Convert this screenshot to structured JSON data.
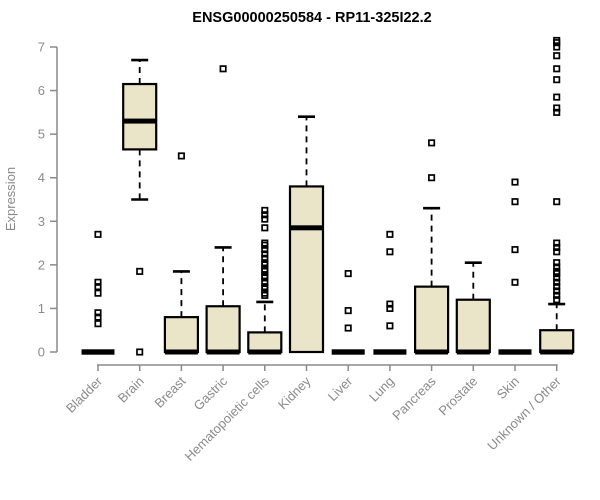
{
  "chart_data": {
    "type": "boxplot",
    "title": "ENSG00000250584 - RP11-325I22.2",
    "xlabel": "",
    "ylabel": "Expression",
    "ylim": [
      0,
      7
    ],
    "yticks": [
      0,
      1,
      2,
      3,
      4,
      5,
      6,
      7
    ],
    "grid": false,
    "legend": "none",
    "categories": [
      "Bladder",
      "Brain",
      "Breast",
      "Gastric",
      "Hematopoietic cells",
      "Kidney",
      "Liver",
      "Lung",
      "Pancreas",
      "Prostate",
      "Skin",
      "Unknown / Other"
    ],
    "series": [
      {
        "name": "Bladder",
        "min": 0,
        "q1": 0,
        "median": 0,
        "q3": 0,
        "max": 0,
        "outliers": [
          2.7,
          1.6,
          1.5,
          1.35,
          0.9,
          0.8,
          0.65
        ]
      },
      {
        "name": "Brain",
        "min": 3.5,
        "q1": 4.65,
        "median": 5.3,
        "q3": 6.15,
        "max": 6.7,
        "outliers": [
          1.85,
          0.0
        ]
      },
      {
        "name": "Breast",
        "min": 0,
        "q1": 0,
        "median": 0,
        "q3": 0.8,
        "max": 1.85,
        "outliers": [
          4.5
        ]
      },
      {
        "name": "Gastric",
        "min": 0,
        "q1": 0,
        "median": 0,
        "q3": 1.05,
        "max": 2.4,
        "outliers": [
          6.5
        ]
      },
      {
        "name": "Hematopoietic cells",
        "min": 0,
        "q1": 0,
        "median": 0,
        "q3": 0.45,
        "max": 1.15,
        "outliers": [
          3.25,
          3.15,
          3.05,
          2.85,
          2.5,
          2.45,
          2.35,
          2.25,
          2.15,
          2.05,
          2.0,
          1.9,
          1.85,
          1.75,
          1.7,
          1.6,
          1.5,
          1.45,
          1.35,
          1.3
        ]
      },
      {
        "name": "Kidney",
        "min": 0,
        "q1": 0,
        "median": 2.85,
        "q3": 3.8,
        "max": 5.4,
        "outliers": []
      },
      {
        "name": "Liver",
        "min": 0,
        "q1": 0,
        "median": 0,
        "q3": 0,
        "max": 0,
        "outliers": [
          1.8,
          0.95,
          0.55
        ]
      },
      {
        "name": "Lung",
        "min": 0,
        "q1": 0,
        "median": 0,
        "q3": 0,
        "max": 0,
        "outliers": [
          2.7,
          2.3,
          1.1,
          1.0,
          0.6
        ]
      },
      {
        "name": "Pancreas",
        "min": 0,
        "q1": 0,
        "median": 0,
        "q3": 1.5,
        "max": 3.3,
        "outliers": [
          4.8,
          4.0
        ]
      },
      {
        "name": "Prostate",
        "min": 0,
        "q1": 0,
        "median": 0,
        "q3": 1.2,
        "max": 2.05,
        "outliers": []
      },
      {
        "name": "Skin",
        "min": 0,
        "q1": 0,
        "median": 0,
        "q3": 0,
        "max": 0,
        "outliers": [
          3.9,
          3.45,
          2.35,
          1.6
        ]
      },
      {
        "name": "Unknown / Other",
        "min": 0,
        "q1": 0,
        "median": 0,
        "q3": 0.5,
        "max": 1.1,
        "outliers": [
          7.15,
          7.1,
          7.0,
          6.8,
          6.5,
          6.25,
          5.85,
          5.6,
          5.5,
          3.45,
          2.5,
          2.4,
          2.3,
          2.05,
          1.95,
          1.85,
          1.8,
          1.7,
          1.6,
          1.5,
          1.4,
          1.3,
          1.2
        ]
      }
    ],
    "colors": {
      "box_fill": "#EAE5C9",
      "box_border": "#000000",
      "median": "#000000",
      "outlier": "#000000",
      "axis": "#8a8a8a",
      "text": "#8a8a8a",
      "title": "#000000",
      "background": "#ffffff"
    }
  }
}
